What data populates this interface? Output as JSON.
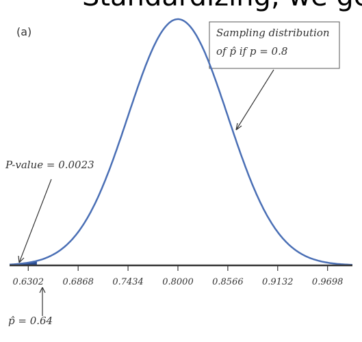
{
  "chart_data": {
    "type": "normal_curve",
    "heading": "Standardizing, we get",
    "panel_label": "(a)",
    "distribution": {
      "mean": 0.8,
      "sd": 0.0566
    },
    "shade_below": 0.64,
    "color": "#4a6fb5",
    "shade_color": "#2c4f94",
    "xlim": [
      0.609,
      0.998
    ],
    "xticks": [
      0.6302,
      0.6868,
      0.7434,
      {
        "value": 0.8,
        "label": "0.8000"
      },
      0.8566,
      0.9132,
      0.9698
    ],
    "annotations": {
      "curve_label": [
        "Sampling distribution",
        "of p̂ if p = 0.8"
      ],
      "p_value": "P-value = 0.0023",
      "p_hat": "p̂ = 0.64"
    }
  }
}
